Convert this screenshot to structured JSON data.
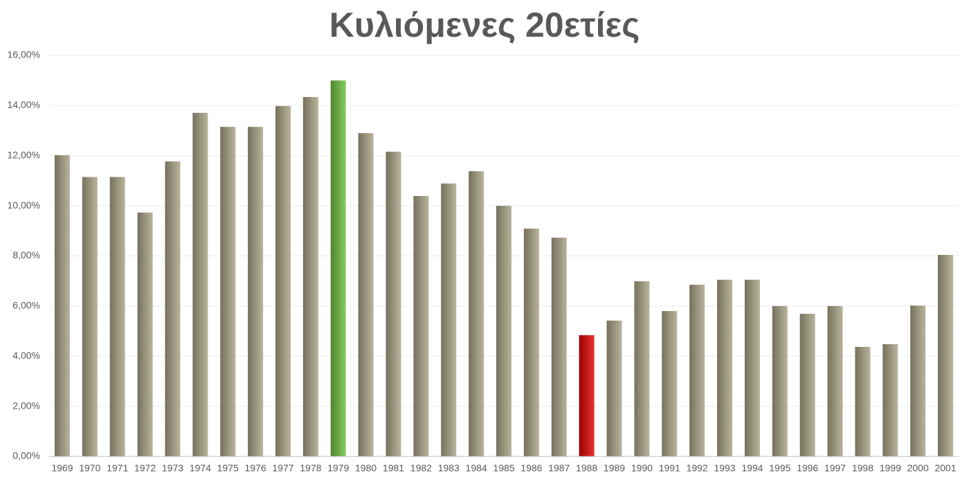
{
  "chart_data": {
    "type": "bar",
    "title": "Κυλιόμενες 20ετίες",
    "categories": [
      "1969",
      "1970",
      "1971",
      "1972",
      "1973",
      "1974",
      "1975",
      "1976",
      "1977",
      "1978",
      "1979",
      "1980",
      "1981",
      "1982",
      "1983",
      "1984",
      "1985",
      "1986",
      "1987",
      "1988",
      "1989",
      "1990",
      "1991",
      "1992",
      "1993",
      "1994",
      "1995",
      "1996",
      "1997",
      "1998",
      "1999",
      "2000",
      "2001"
    ],
    "values": [
      12.02,
      11.15,
      11.15,
      9.73,
      11.77,
      13.71,
      13.15,
      13.15,
      13.98,
      14.34,
      15.0,
      12.9,
      12.16,
      10.39,
      10.89,
      11.38,
      10.0,
      9.09,
      8.73,
      4.84,
      5.42,
      6.99,
      5.8,
      6.85,
      7.05,
      7.05,
      6.0,
      5.69,
      6.0,
      4.37,
      4.48,
      6.02,
      8.04
    ],
    "colors": [
      "#a8a283",
      "#a8a283",
      "#a8a283",
      "#a8a283",
      "#a8a283",
      "#a8a283",
      "#a8a283",
      "#a8a283",
      "#a8a283",
      "#a8a283",
      "#6cbf3c",
      "#a8a283",
      "#a8a283",
      "#a8a283",
      "#a8a283",
      "#a8a283",
      "#a8a283",
      "#a8a283",
      "#a8a283",
      "#e00000",
      "#a8a283",
      "#a8a283",
      "#a8a283",
      "#a8a283",
      "#a8a283",
      "#a8a283",
      "#a8a283",
      "#a8a283",
      "#a8a283",
      "#a8a283",
      "#a8a283",
      "#a8a283",
      "#a8a283"
    ],
    "ylim": [
      0,
      16
    ],
    "yticks": [
      {
        "value": 0,
        "label": "0,00%"
      },
      {
        "value": 2,
        "label": "2,00%"
      },
      {
        "value": 4,
        "label": "4,00%"
      },
      {
        "value": 6,
        "label": "6,00%"
      },
      {
        "value": 8,
        "label": "8,00%"
      },
      {
        "value": 10,
        "label": "10,00%"
      },
      {
        "value": 12,
        "label": "12,00%"
      },
      {
        "value": 14,
        "label": "14,00%"
      },
      {
        "value": 16,
        "label": "16,00%"
      }
    ],
    "grid": true
  }
}
